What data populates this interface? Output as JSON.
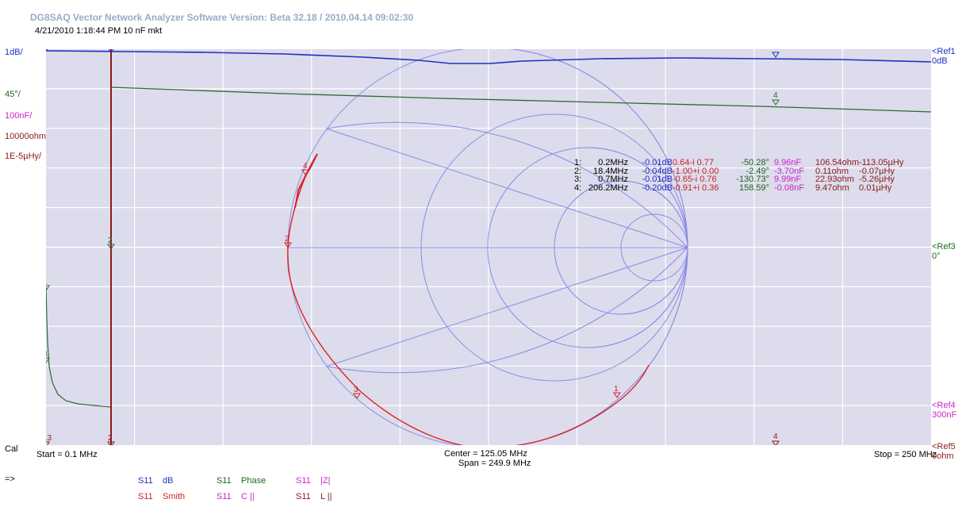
{
  "app": {
    "title": "DG8SAQ Vector Network Analyzer Software   Version:  Beta 32.18 / 2010.04.14 09:02:30",
    "subtitle": "4/21/2010  1:18:44 PM   10 nF mkt"
  },
  "left_scale": [
    {
      "text": "1dB/",
      "color": "#1f2fbf"
    },
    {
      "text": "45°/",
      "color": "#1a6a1a"
    },
    {
      "text": "100nF/",
      "color": "#cc22cc"
    },
    {
      "text": "10000ohm/",
      "color": "#8b1a1a"
    },
    {
      "text": "1E-5µHy/",
      "color": "#8b1a1a"
    }
  ],
  "right_refs": {
    "ref1": {
      "name": "<Ref1",
      "value": "0dB",
      "color": "#1f2fbf"
    },
    "ref3": {
      "name": "<Ref3",
      "value": "0°",
      "color": "#1a6a1a"
    },
    "ref4": {
      "name": "<Ref4",
      "value": "300nF",
      "color": "#cc22cc"
    },
    "ref5": {
      "name": "<Ref5",
      "value": "0ohm",
      "color": "#8b1a1a"
    }
  },
  "axis": {
    "cal": "Cal",
    "start": "Start = 0.1 MHz",
    "center": "Center = 125.05 MHz",
    "span": "Span = 249.9 MHz",
    "stop": "Stop = 250 MHz"
  },
  "markers_table": [
    [
      "1:",
      "0.2MHz",
      "-0.01dB",
      "0.64-i 0.77",
      "-50.28°",
      "9.96nF",
      "106.54ohm",
      "-113.05µHy"
    ],
    [
      "2:",
      "18.4MHz",
      "-0.04dB",
      "-1.00+i 0.00",
      "-2.49°",
      "-3.70nF",
      "0.11ohm",
      "-0.07µHy"
    ],
    [
      "3:",
      "0.7MHz",
      "-0.01dB",
      "-0.65-i 0.76",
      "-130.73°",
      "9.99nF",
      "22.93ohm",
      "-5.26µHy"
    ],
    [
      "4:",
      "206.2MHz",
      "-0.20dB",
      "-0.91+i 0.36",
      "158.59°",
      "-0.08nF",
      "9.47ohm",
      "0.01µHy"
    ]
  ],
  "table_colors": [
    "#000000",
    "#000000",
    "#1f2fbf",
    "#cc2222",
    "#1a6a1a",
    "#cc22cc",
    "#8b1a1a",
    "#8b1a1a"
  ],
  "marker_labels": {
    "m1": "1",
    "m2": "2",
    "m3": "3",
    "m4": "4",
    "m13": "13"
  },
  "prompt": "=>",
  "legend": [
    {
      "param": "S11",
      "name": "dB",
      "color": "#1f2fbf"
    },
    {
      "param": "S11",
      "name": "Phase",
      "color": "#1a6a1a"
    },
    {
      "param": "S11",
      "name": "|Z|",
      "color": "#cc22cc"
    },
    {
      "param": "S11",
      "name": "Smith",
      "color": "#cc2222"
    },
    {
      "param": "S11",
      "name": "C ||",
      "color": "#cc22cc"
    },
    {
      "param": "S11",
      "name": "L ||",
      "color": "#8b1a1a"
    }
  ],
  "colors": {
    "grid_bg": "#dcdcec",
    "smith": "#8a8ae8",
    "db_trace": "#1f2fbf",
    "phase_trace": "#2e6a2e",
    "smith_trace": "#dd2222",
    "marker_vline": "#8b1a1a"
  }
}
